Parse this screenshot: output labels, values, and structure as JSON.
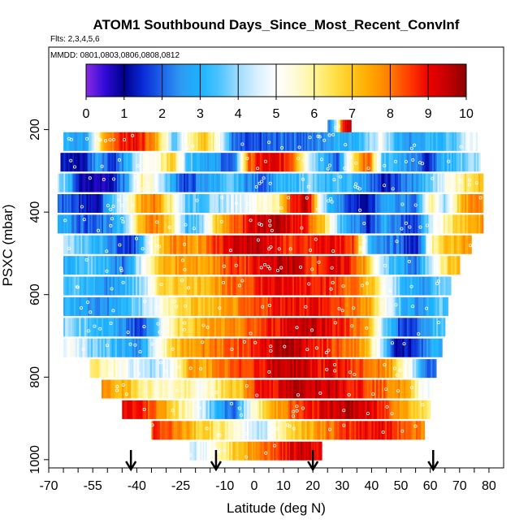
{
  "chart_data": {
    "type": "heatmap",
    "title": "ATOM1 Southbound Days_Since_Most_Recent_ConvInf",
    "subtitle": "Flts: 2,3,4,5,6",
    "annotation": "MMDD: 0801,0803,0806,0808,0812",
    "xlabel": "Latitude (deg N)",
    "ylabel": "PSXC (mbar)",
    "xlim": [
      -70,
      85
    ],
    "ylim": [
      1020,
      0
    ],
    "x_ticks": [
      -70,
      -55,
      -40,
      -25,
      -10,
      0,
      10,
      20,
      30,
      40,
      50,
      60,
      70,
      80
    ],
    "x_tick_labels": [
      "-70",
      "-55",
      "-40",
      "-25",
      "-10",
      "0",
      "10",
      "20",
      "30",
      "40",
      "50",
      "60",
      "70",
      "80"
    ],
    "x_minor_ticks": [
      -65,
      -60,
      -50,
      -45,
      -35,
      -30,
      -20,
      -15,
      -5,
      5,
      15,
      25,
      35,
      45,
      55,
      65,
      75
    ],
    "y_ticks": [
      200,
      400,
      600,
      800,
      1000
    ],
    "y_tick_labels": [
      "200",
      "400",
      "600",
      "800",
      "1000"
    ],
    "colorbar": {
      "range": [
        0,
        10
      ],
      "ticks": [
        0,
        1,
        2,
        3,
        4,
        5,
        6,
        7,
        8,
        9,
        10
      ],
      "tick_labels": [
        "0",
        "1",
        "2",
        "3",
        "4",
        "5",
        "6",
        "7",
        "8",
        "9",
        "10"
      ],
      "stops": [
        [
          0.0,
          "#8a2be2"
        ],
        [
          0.5,
          "#2e0bd6"
        ],
        [
          1.0,
          "#00008b"
        ],
        [
          1.5,
          "#0a2bd8"
        ],
        [
          2.0,
          "#1e64e8"
        ],
        [
          2.5,
          "#2e9bf2"
        ],
        [
          3.0,
          "#1ab3ff"
        ],
        [
          3.5,
          "#4cc4ff"
        ],
        [
          4.0,
          "#9fdcff"
        ],
        [
          4.5,
          "#d8f0ff"
        ],
        [
          5.0,
          "#ffffff"
        ],
        [
          5.5,
          "#fffad8"
        ],
        [
          6.0,
          "#fff599"
        ],
        [
          6.5,
          "#ffe14d"
        ],
        [
          7.0,
          "#ffc61a"
        ],
        [
          7.5,
          "#ffa500"
        ],
        [
          8.0,
          "#ff7a00"
        ],
        [
          8.5,
          "#ff3d00"
        ],
        [
          9.0,
          "#ee0000"
        ],
        [
          9.5,
          "#c40000"
        ],
        [
          10.0,
          "#8b0000"
        ]
      ]
    },
    "arrows_lat": [
      -42,
      -13,
      20,
      61
    ],
    "levels": [
      {
        "p": 200,
        "x0": 25,
        "x1": 33,
        "v": [
          2.5,
          4.5,
          8.5,
          9.5
        ]
      },
      {
        "p": 230,
        "x0": -65,
        "x1": 76,
        "v": [
          3,
          2.5,
          6.5,
          8.5,
          9,
          8.5,
          7,
          3.5,
          6,
          7,
          5.5,
          2,
          1.5,
          1.8,
          2,
          2.2,
          2,
          2.5,
          3,
          3,
          3.5,
          5,
          3,
          2.5,
          3,
          3.2,
          3.6,
          5
        ]
      },
      {
        "p": 280,
        "x0": -66,
        "x1": 77,
        "v": [
          1.2,
          1,
          3,
          1.5,
          3,
          5,
          5.5,
          7,
          3.5,
          3,
          2.5,
          1.5,
          8,
          9,
          9,
          8.5,
          5,
          3,
          2,
          6,
          8.5,
          3.5,
          3,
          2.5,
          1.5,
          3,
          3.5,
          4
        ]
      },
      {
        "p": 330,
        "x0": -67,
        "x1": 78,
        "v": [
          4,
          1,
          0.8,
          1,
          2.5,
          6,
          5,
          3,
          1.5,
          2.5,
          3,
          3.5,
          2.5,
          2,
          3,
          3,
          4,
          3,
          3.5,
          3,
          2.5,
          1,
          2,
          2.5,
          3.5,
          5,
          6,
          7
        ]
      },
      {
        "p": 380,
        "x0": -67,
        "x1": 78,
        "v": [
          2,
          1.5,
          1,
          3,
          5,
          7.5,
          8,
          6,
          3.5,
          3.5,
          4,
          4.5,
          5,
          5.5,
          6,
          9,
          9.5,
          4,
          2.5,
          1.5,
          1,
          3,
          2.5,
          2,
          6,
          4,
          7,
          8
        ]
      },
      {
        "p": 430,
        "x0": -67,
        "x1": 78,
        "v": [
          3,
          2,
          1.8,
          2.5,
          3.5,
          7.5,
          8,
          6.5,
          3,
          4,
          7,
          8,
          9,
          9.5,
          9.5,
          9,
          8.5,
          7,
          3.5,
          2.5,
          1.5,
          3,
          2,
          1.5,
          4,
          6,
          7,
          7.5
        ]
      },
      {
        "p": 480,
        "x0": -65,
        "x1": 74,
        "v": [
          4,
          3.5,
          3,
          2,
          1.5,
          5,
          7.5,
          8,
          7.5,
          8.5,
          9,
          9.5,
          9.5,
          9,
          8.5,
          8.5,
          9,
          9,
          8.5,
          3,
          2.5,
          2,
          1,
          6,
          7,
          7.5
        ]
      },
      {
        "p": 530,
        "x0": -65,
        "x1": 70,
        "v": [
          3,
          3.5,
          3,
          2,
          4.5,
          7,
          7.5,
          7.5,
          7.5,
          8.5,
          8.5,
          9,
          9.5,
          9.5,
          8.5,
          9,
          9,
          7.5,
          4,
          3,
          2,
          5,
          7
        ]
      },
      {
        "p": 580,
        "x0": -65,
        "x1": 67,
        "v": [
          3.5,
          3,
          2.5,
          3,
          4,
          6.5,
          7,
          7,
          7.5,
          8,
          8.5,
          9,
          9,
          9,
          9,
          8.5,
          8,
          7,
          4.5,
          3,
          2.5,
          4
        ]
      },
      {
        "p": 630,
        "x0": -65,
        "x1": 66,
        "v": [
          3,
          2.5,
          2.5,
          3,
          4,
          5,
          6.5,
          7,
          7,
          7.5,
          8,
          8.5,
          9,
          9,
          9,
          8.5,
          8,
          7.5,
          5,
          3,
          2.5,
          3.5
        ]
      },
      {
        "p": 680,
        "x0": -65,
        "x1": 65,
        "v": [
          4,
          3.5,
          3,
          2.5,
          1.5,
          4,
          6.5,
          7,
          7.5,
          7.5,
          8,
          8.5,
          9,
          9.5,
          9.5,
          9,
          8.5,
          7.5,
          4,
          1.5,
          2,
          3.5
        ]
      },
      {
        "p": 730,
        "x0": -65,
        "x1": 64,
        "v": [
          5,
          4,
          3.5,
          3,
          2.5,
          5,
          7,
          7.5,
          8,
          8,
          8.5,
          9,
          9.5,
          9.5,
          9,
          8.5,
          8,
          7.5,
          4,
          1,
          1.5,
          3
        ]
      },
      {
        "p": 780,
        "x0": -56,
        "x1": 62,
        "v": [
          6,
          5.5,
          4.5,
          4,
          5,
          7.5,
          7.5,
          8,
          8.5,
          9,
          9.5,
          9.5,
          9,
          9,
          8.5,
          8,
          7.5,
          5,
          2
        ]
      },
      {
        "p": 830,
        "x0": -52,
        "x1": 61,
        "v": [
          7.5,
          7,
          6,
          5.5,
          6,
          5,
          6.5,
          7,
          9,
          9,
          9.5,
          9.5,
          9.5,
          9,
          8.5,
          8,
          7.5,
          5
        ]
      },
      {
        "p": 880,
        "x0": -45,
        "x1": 60,
        "v": [
          9,
          8.5,
          7.5,
          6,
          5,
          3,
          2,
          5,
          7,
          8,
          8.5,
          9,
          9.5,
          9.5,
          9,
          8.5,
          7.5,
          6.5
        ]
      },
      {
        "p": 930,
        "x0": -35,
        "x1": 58,
        "v": [
          8.5,
          8,
          7,
          6.5,
          6,
          5,
          4,
          6,
          7,
          7.5,
          8,
          8.5,
          9,
          9,
          8.5,
          8
        ]
      },
      {
        "p": 980,
        "x0": -22,
        "x1": 23,
        "v": [
          4.5,
          5,
          6,
          7,
          7.5,
          8,
          8.5,
          9,
          9.5,
          9
        ]
      }
    ]
  }
}
